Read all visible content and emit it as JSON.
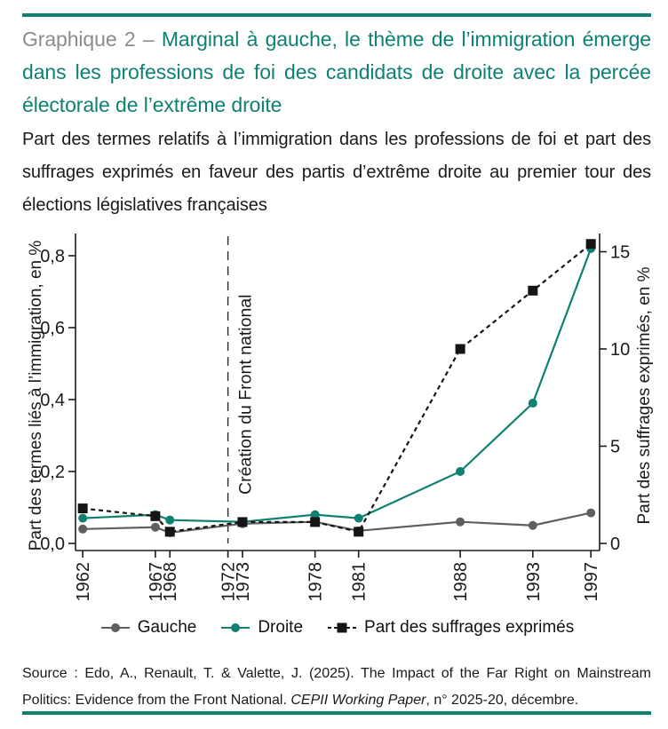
{
  "meta": {
    "accent_color": "#0e8170"
  },
  "header": {
    "label": "Graphique 2",
    "separator": " – ",
    "title": "Marginal à gauche, le thème de l’immigration émerge dans les professions de foi des candidats de droite avec la percée électorale de l’extrême droite",
    "subtitle": "Part des termes relatifs à l’immigration dans les professions de foi et part des suffrages exprimés en faveur des partis d’extrême droite au premier tour des élections législatives françaises"
  },
  "chart_data": {
    "type": "line",
    "title": "Marginal à gauche, le thème de l’immigration émerge dans les professions de foi des candidats de droite avec la percée électorale de l’extrême droite",
    "subtitle": "Part des termes relatifs à l’immigration dans les professions de foi et part des suffrages exprimés en faveur des partis d’extrême droite au premier tour des élections législatives françaises",
    "x": [
      1962,
      1967,
      1968,
      1973,
      1978,
      1981,
      1988,
      1993,
      1997
    ],
    "x_tick_labels": [
      "1962",
      "1967",
      "1968",
      "1972",
      "1973",
      "1978",
      "1981",
      "1988",
      "1993",
      "1997"
    ],
    "x_range": [
      1961.5,
      1997.6
    ],
    "left_axis": {
      "label": "Part des termes liés à l’immigration, en %",
      "tick_labels": [
        "0,0",
        "0,2",
        "0,4",
        "0,6",
        "0,8"
      ],
      "tick_values": [
        0,
        0.2,
        0.4,
        0.6,
        0.8
      ],
      "range": [
        0,
        0.86
      ]
    },
    "right_axis": {
      "label": "Part des suffrages exprimés, en %",
      "tick_labels": [
        "0",
        "5",
        "10",
        "15"
      ],
      "tick_values": [
        0,
        5,
        10,
        15
      ],
      "range": [
        0,
        15.9
      ]
    },
    "series": [
      {
        "name": "Gauche",
        "axis": "left",
        "color": "#5f5f5f",
        "marker": "circle",
        "line": "solid",
        "values": [
          0.04,
          0.045,
          0.03,
          0.055,
          0.06,
          0.035,
          0.06,
          0.05,
          0.085
        ]
      },
      {
        "name": "Droite",
        "axis": "left",
        "color": "#0e8170",
        "marker": "circle",
        "line": "solid",
        "values": [
          0.07,
          0.08,
          0.065,
          0.06,
          0.08,
          0.07,
          0.2,
          0.39,
          0.82
        ]
      },
      {
        "name": "Part des suffrages exprimés",
        "axis": "right",
        "color": "#151515",
        "marker": "square",
        "line": "dashed",
        "values": [
          1.8,
          1.4,
          0.6,
          1.1,
          1.1,
          0.6,
          10,
          13,
          15.4
        ]
      }
    ],
    "annotation": {
      "x": 1972,
      "label": "Création du Front national",
      "style": "dashed"
    },
    "legend": [
      "Gauche",
      "Droite",
      "Part des suffrages exprimés"
    ],
    "legend_position": "bottom",
    "grid": false
  },
  "source": {
    "prefix": "Source : Edo, A., Renault, T. & Valette, J. (2025). The Impact of the Far Right on Mainstream Politics: Evidence from the Front National. ",
    "italic": "CEPII Working Paper",
    "suffix": ", n° 2025-20, décembre."
  }
}
